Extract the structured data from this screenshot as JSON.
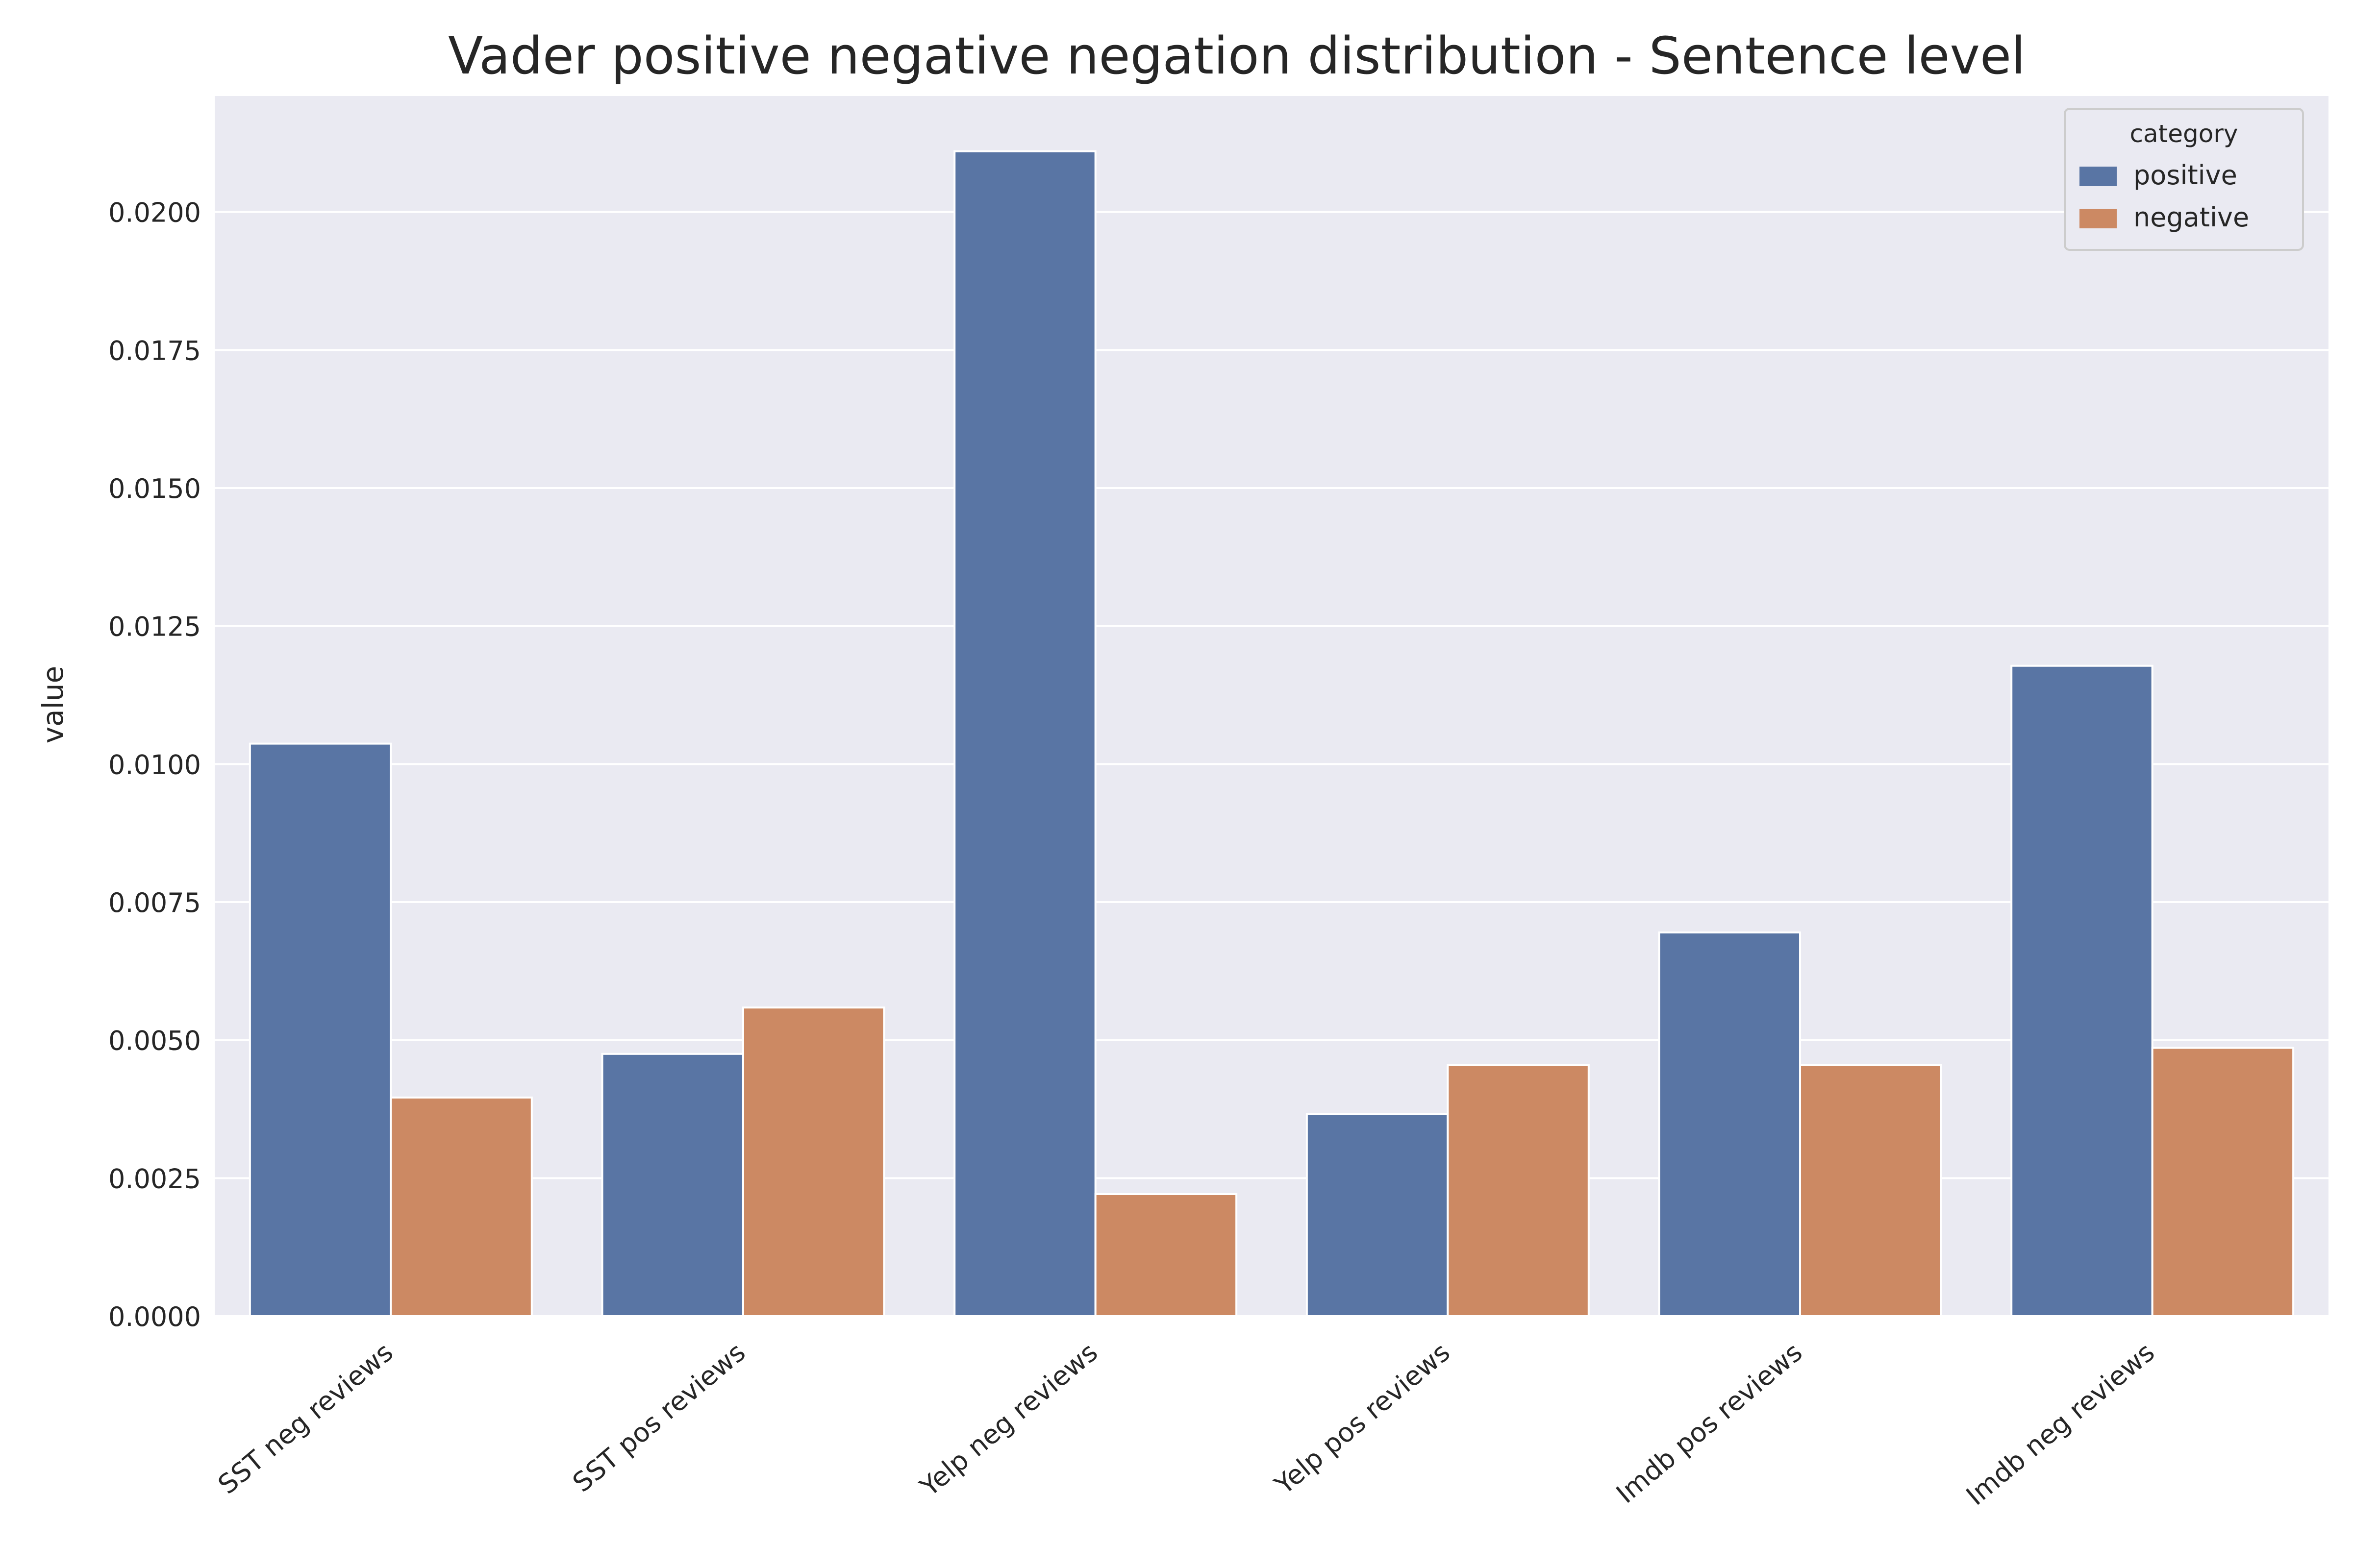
{
  "chart_data": {
    "type": "bar",
    "title": "Vader positive negative negation distribution - Sentence level",
    "xlabel": "",
    "ylabel": "value",
    "categories": [
      "SST neg reviews",
      "SST pos reviews",
      "Yelp neg reviews",
      "Yelp pos reviews",
      "Imdb pos reviews",
      "Imdb neg reviews"
    ],
    "series": [
      {
        "name": "positive",
        "color": "#5975a4",
        "values": [
          0.01037,
          0.00475,
          0.0211,
          0.00366,
          0.00695,
          0.01178
        ]
      },
      {
        "name": "negative",
        "color": "#cc8963",
        "values": [
          0.00396,
          0.00559,
          0.00221,
          0.00455,
          0.00455,
          0.00486
        ]
      }
    ],
    "ylim": [
      0,
      0.0221
    ],
    "yticks": [
      "0.0000",
      "0.0025",
      "0.0050",
      "0.0075",
      "0.0100",
      "0.0125",
      "0.0150",
      "0.0175",
      "0.0200"
    ],
    "grid": true,
    "legend": {
      "title": "category",
      "placement": "top-right"
    }
  },
  "colors": {
    "plot_background": "#eaeaf2",
    "grid": "#ffffff",
    "text": "#262626"
  }
}
